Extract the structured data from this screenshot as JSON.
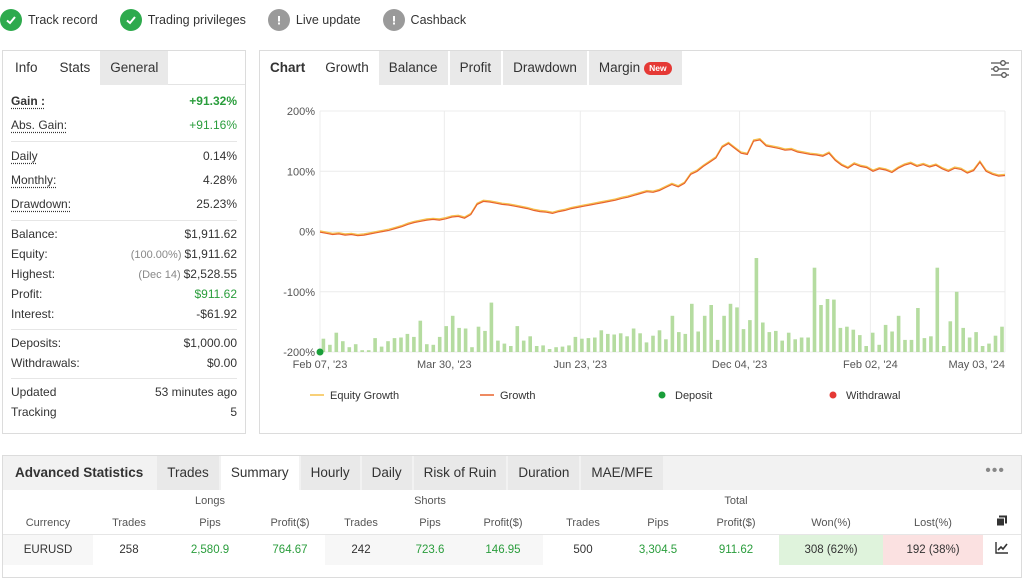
{
  "badges": [
    {
      "label": "Track record",
      "icon": "check-icon",
      "status": "ok"
    },
    {
      "label": "Trading privileges",
      "icon": "check-icon",
      "status": "ok"
    },
    {
      "label": "Live update",
      "icon": "exclamation-icon",
      "status": "warn"
    },
    {
      "label": "Cashback",
      "icon": "exclamation-icon",
      "status": "warn"
    }
  ],
  "info": {
    "tabs": [
      "Info",
      "Stats",
      "General"
    ],
    "gain_label": "Gain :",
    "gain_value": "+91.32%",
    "abs_gain_label": "Abs. Gain:",
    "abs_gain_value": "+91.16%",
    "daily_label": "Daily",
    "daily_value": "0.14%",
    "monthly_label": "Monthly:",
    "monthly_value": "4.28%",
    "drawdown_label": "Drawdown:",
    "drawdown_value": "25.23%",
    "balance_label": "Balance:",
    "balance_value": "$1,911.62",
    "equity_label": "Equity:",
    "equity_pct": "(100.00%)",
    "equity_value": "$1,911.62",
    "highest_label": "Highest:",
    "highest_date": "(Dec 14)",
    "highest_value": "$2,528.55",
    "profit_label": "Profit:",
    "profit_value": "$911.62",
    "interest_label": "Interest:",
    "interest_value": "-$61.92",
    "deposits_label": "Deposits:",
    "deposits_value": "$1,000.00",
    "withdrawals_label": "Withdrawals:",
    "withdrawals_value": "$0.00",
    "updated_label": "Updated",
    "updated_value": "53 minutes ago",
    "tracking_label": "Tracking",
    "tracking_value": "5"
  },
  "chart_panel": {
    "tabs": [
      "Chart",
      "Growth",
      "Balance",
      "Profit",
      "Drawdown",
      "Margin"
    ],
    "new_badge": "New",
    "settings_icon": "sliders-icon"
  },
  "chart_data": {
    "type": "line",
    "ylim": [
      -200,
      200
    ],
    "yticks": [
      "200%",
      "100%",
      "0%",
      "-100%",
      "-200%"
    ],
    "xticks": [
      "Feb 07, '23",
      "Mar 30, '23",
      "Jun 23, '23",
      "Dec 04, '23",
      "Feb 02, '24",
      "May 03, '24"
    ],
    "legend": [
      "Equity Growth",
      "Growth",
      "Deposit",
      "Withdrawal"
    ],
    "colors": {
      "equity": "#f5c04a",
      "growth": "#e8622c",
      "deposit": "#1a9e3a",
      "withdrawal": "#e53935",
      "bars": "#b5dca0"
    },
    "series": [
      {
        "name": "Growth",
        "values": [
          -1,
          -3,
          -5,
          -4,
          -6,
          -5,
          -7,
          -6,
          -4,
          -2,
          0,
          2,
          5,
          8,
          12,
          15,
          17,
          19,
          20,
          19,
          21,
          24,
          25,
          22,
          28,
          45,
          50,
          49,
          47,
          45,
          44,
          42,
          40,
          38,
          35,
          33,
          32,
          30,
          33,
          35,
          38,
          40,
          42,
          44,
          46,
          48,
          50,
          52,
          55,
          57,
          60,
          63,
          66,
          65,
          68,
          73,
          78,
          74,
          80,
          95,
          100,
          108,
          115,
          122,
          140,
          146,
          138,
          130,
          128,
          150,
          152,
          142,
          140,
          138,
          135,
          136,
          132,
          130,
          128,
          127,
          125,
          130,
          118,
          110,
          105,
          112,
          108,
          106,
          100,
          104,
          102,
          98,
          105,
          110,
          113,
          108,
          111,
          107,
          110,
          104,
          100,
          105,
          103,
          97,
          101,
          115,
          100,
          95,
          92,
          93
        ]
      }
    ],
    "deposit_points": [
      {
        "x": "Feb 07, '23",
        "y": -200
      }
    ],
    "bars": [
      22,
      12,
      32,
      18,
      8,
      13,
      3,
      3,
      23,
      9,
      18,
      23,
      24,
      30,
      25,
      52,
      13,
      12,
      25,
      43,
      60,
      40,
      39,
      8,
      42,
      35,
      82,
      19,
      14,
      10,
      43,
      19,
      26,
      10,
      11,
      5,
      8,
      9,
      11,
      25,
      22,
      23,
      24,
      36,
      30,
      29,
      31,
      26,
      39,
      31,
      16,
      27,
      36,
      21,
      60,
      33,
      30,
      80,
      34,
      60,
      78,
      20,
      60,
      80,
      74,
      38,
      53,
      156,
      49,
      33,
      35,
      19,
      32,
      21,
      24,
      24,
      140,
      78,
      88,
      87,
      40,
      42,
      37,
      28,
      10,
      32,
      12,
      45,
      34,
      60,
      20,
      20,
      73,
      23,
      26,
      140,
      10,
      51,
      100,
      40,
      24,
      33,
      10,
      14,
      27,
      42
    ]
  },
  "adv": {
    "tabs": [
      "Advanced Statistics",
      "Trades",
      "Summary",
      "Hourly",
      "Daily",
      "Risk of Ruin",
      "Duration",
      "MAE/MFE"
    ],
    "group_headers": [
      "Longs",
      "Shorts",
      "Total"
    ],
    "col_headers": [
      "Currency",
      "Trades",
      "Pips",
      "Profit($)",
      "Trades",
      "Pips",
      "Profit($)",
      "Trades",
      "Pips",
      "Profit($)",
      "Won(%)",
      "Lost(%)"
    ],
    "row": [
      "EURUSD",
      "258",
      "2,580.9",
      "764.67",
      "242",
      "723.6",
      "146.95",
      "500",
      "3,304.5",
      "911.62",
      "308 (62%)",
      "192 (38%)"
    ]
  }
}
